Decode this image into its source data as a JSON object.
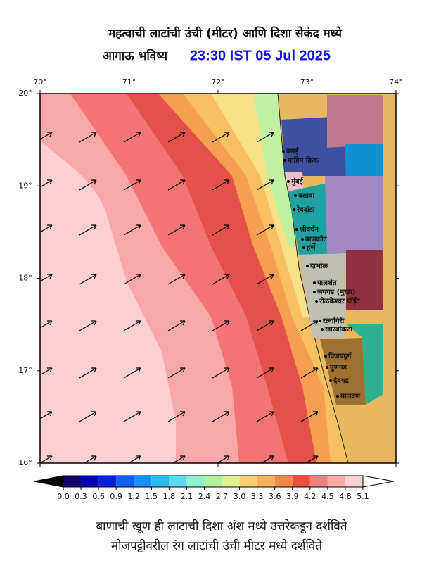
{
  "header": {
    "title": "महत्वाची लाटांची उंची (मीटर) आणि दिशा सेकंद मध्ये",
    "subtitle": "आगाऊ भविष्य",
    "datetime": "23:30 IST 05 Jul 2025"
  },
  "map": {
    "lon_labels": [
      "70°",
      "71°",
      "72°",
      "73°",
      "74°"
    ],
    "lat_labels": [
      "20°",
      "19°",
      "18°",
      "17°",
      "16°"
    ],
    "places": [
      "वसई",
      "माहिम क्रिक",
      "मुंबई",
      "वसावा",
      "रेवदांडा",
      "श्रीवर्धन",
      "बाणकोट",
      "हर्णे",
      "दाभोळ",
      "पालशेत",
      "जयगड (मुख्य)",
      "रोळकेश्वर पॉईंट",
      "रत्नागिरी",
      "खारबांवळा",
      "विजयदुर्ग",
      "पुणगड",
      "देवगड",
      "मालवण"
    ]
  },
  "colorbar": {
    "labels": [
      "0.0",
      "0.3",
      "0.6",
      "0.9",
      "1.2",
      "1.5",
      "1.8",
      "2.1",
      "2.4",
      "2.7",
      "3.0",
      "3.3",
      "3.6",
      "3.9",
      "4.2",
      "4.5",
      "4.8",
      "5.1"
    ],
    "colors": [
      "#10006a",
      "#0000b0",
      "#0020e0",
      "#1060f0",
      "#1890f8",
      "#30b8f0",
      "#60d8f0",
      "#90f0d0",
      "#b0f0a0",
      "#e0f090",
      "#f8d070",
      "#f8b058",
      "#f08848",
      "#e85040",
      "#f08080",
      "#f8a8a8",
      "#fcd0d0"
    ]
  },
  "footer": {
    "line1": "बाणाची खूण ही लाटाची दिशा अंश मध्ये उत्तरेकडून दर्शविते",
    "line2": "मोजपट्टीवरील रंग लाटांची उंची मीटर मध्ये दर्शविते"
  }
}
